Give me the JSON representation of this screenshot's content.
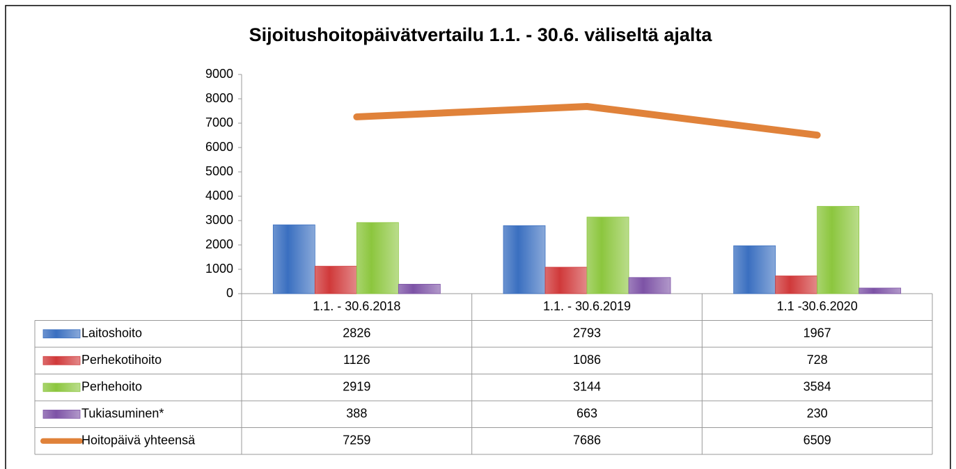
{
  "chart_data": {
    "type": "bar",
    "title": "Sijoitushoitopäivätvertailu 1.1. - 30.6. väliseltä ajalta",
    "categories": [
      "1.1. - 30.6.2018",
      "1.1. - 30.6.2019",
      "1.1 -30.6.2020"
    ],
    "series": [
      {
        "name": "Laitoshoito",
        "color": "#3a6fc0",
        "values": [
          2826,
          2793,
          1967
        ]
      },
      {
        "name": "Perhekotihoito",
        "color": "#d0393a",
        "values": [
          1126,
          1086,
          728
        ]
      },
      {
        "name": "Perhehoito",
        "color": "#8cc63e",
        "values": [
          2919,
          3144,
          3584
        ]
      },
      {
        "name": "Tukiasuminen*",
        "color": "#7d53a6",
        "values": [
          388,
          663,
          230
        ]
      },
      {
        "name": "Hoitopäivä yhteensä",
        "color": "#e0823a",
        "type": "line",
        "values": [
          7259,
          7686,
          6509
        ]
      }
    ],
    "ylim": [
      0,
      9000
    ],
    "yticks": [
      0,
      1000,
      2000,
      3000,
      4000,
      5000,
      6000,
      7000,
      8000,
      9000
    ],
    "grid": false
  }
}
